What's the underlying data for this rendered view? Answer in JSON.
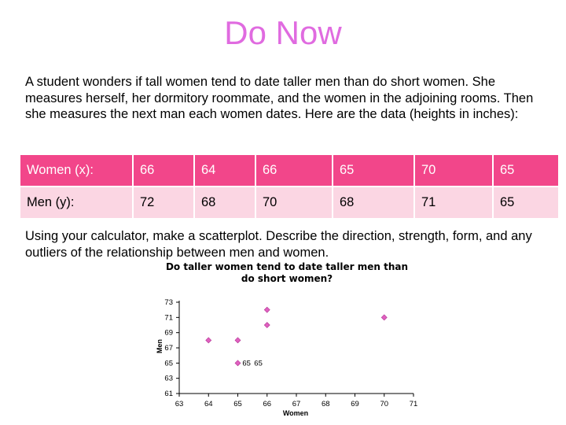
{
  "title": "Do Now",
  "prompt": "A student wonders if tall women tend to date taller men than do short women. She measures herself, her dormitory roommate, and the women in the adjoining rooms. Then she measures the next man each women dates. Here are the data (heights in inches):",
  "table": {
    "rows": [
      {
        "label": "Women (x):",
        "values": [
          "66",
          "64",
          "66",
          "65",
          "70",
          "65"
        ]
      },
      {
        "label": "Men (y):",
        "values": [
          "72",
          "68",
          "70",
          "68",
          "71",
          "65"
        ]
      }
    ]
  },
  "question": "Using your calculator, make a scatterplot. Describe the direction, strength, form, and any outliers of the relationship between men and women.",
  "colors": {
    "title": "#e06be0",
    "table_header_bg": "#f2468a",
    "table_row_bg": "#fbd6e3",
    "marker": "#e060c0"
  },
  "chart_data": {
    "type": "scatter",
    "title": "Do taller women tend to date taller men than do short women?",
    "xlabel": "Women",
    "ylabel": "Men",
    "xlim": [
      63,
      71
    ],
    "ylim": [
      61,
      73
    ],
    "x_ticks": [
      63,
      64,
      65,
      66,
      67,
      68,
      69,
      70,
      71
    ],
    "y_ticks": [
      61,
      63,
      65,
      67,
      69,
      71,
      73
    ],
    "grid": false,
    "points": [
      {
        "x": 64,
        "y": 68
      },
      {
        "x": 65,
        "y": 68
      },
      {
        "x": 65,
        "y": 65
      },
      {
        "x": 66,
        "y": 72
      },
      {
        "x": 66,
        "y": 70
      },
      {
        "x": 70,
        "y": 71
      }
    ],
    "annotations": [
      {
        "x": 65.3,
        "y": 65,
        "text": "65"
      },
      {
        "x": 65.7,
        "y": 65,
        "text": "65"
      }
    ]
  }
}
